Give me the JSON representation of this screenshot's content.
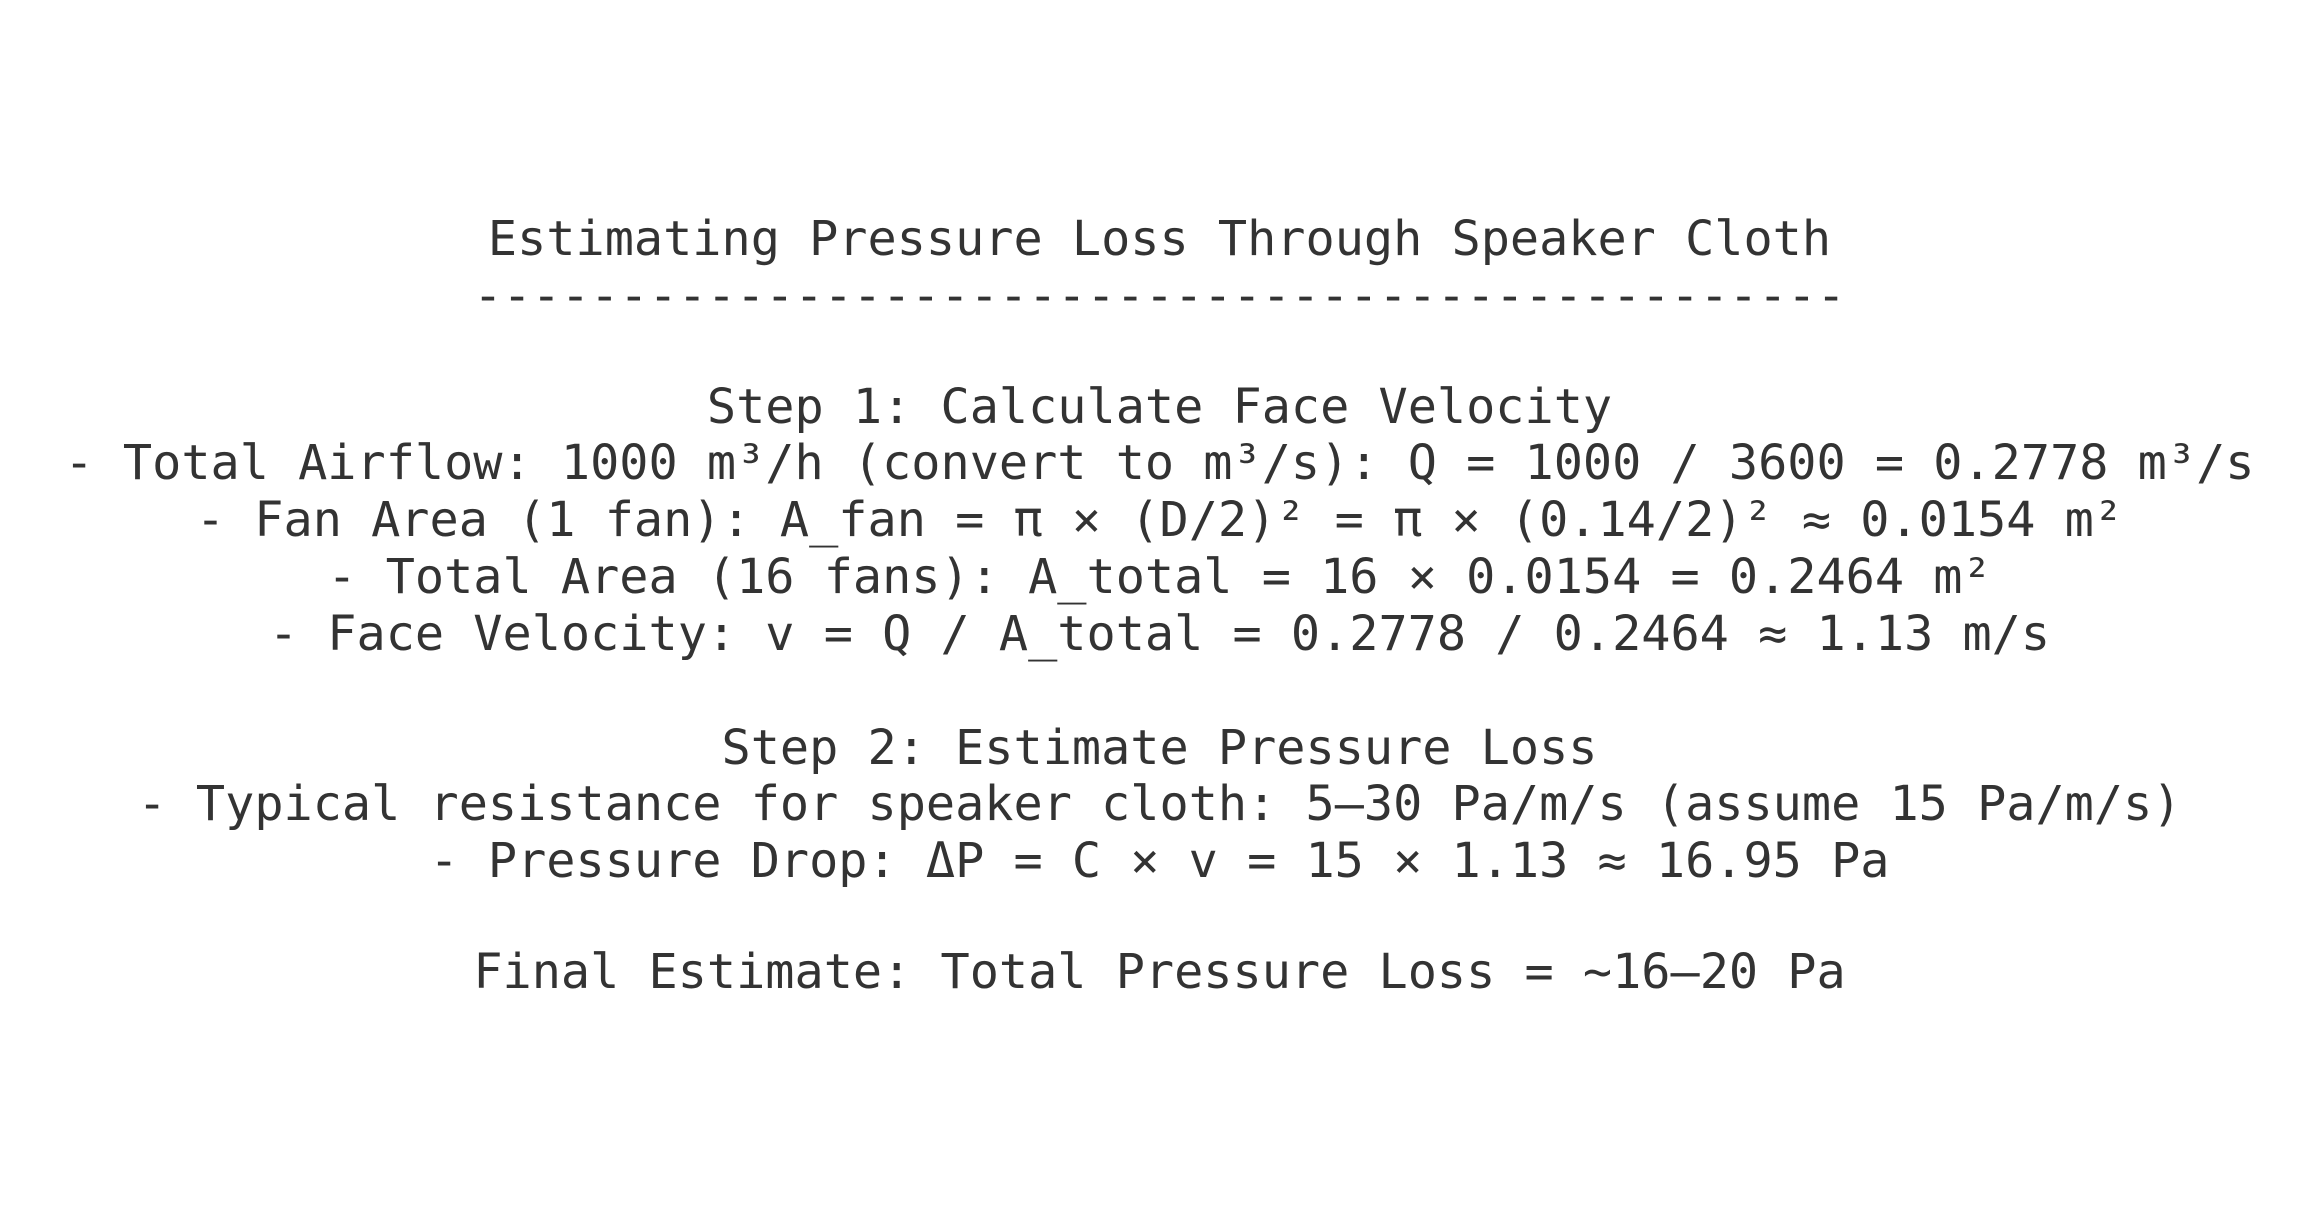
{
  "title": "Estimating Pressure Loss Through Speaker Cloth",
  "rule": "-----------------------------------------------",
  "step1": {
    "heading": "Step 1: Calculate Face Velocity",
    "lines": [
      "- Total Airflow: 1000 m³/h (convert to m³/s): Q = 1000 / 3600 = 0.2778 m³/s",
      "- Fan Area (1 fan): A_fan = π × (D/2)² = π × (0.14/2)² ≈ 0.0154 m²",
      "- Total Area (16 fans): A_total = 16 × 0.0154 = 0.2464 m²",
      "- Face Velocity: v = Q / A_total = 0.2778 / 0.2464 ≈ 1.13 m/s"
    ]
  },
  "step2": {
    "heading": "Step 2: Estimate Pressure Loss",
    "lines": [
      "- Typical resistance for speaker cloth: 5–30 Pa/m/s (assume 15 Pa/m/s)",
      "- Pressure Drop: ΔP = C × v = 15 × 1.13 ≈ 16.95 Pa"
    ]
  },
  "final": "Final Estimate: Total Pressure Loss = ~16–20 Pa"
}
